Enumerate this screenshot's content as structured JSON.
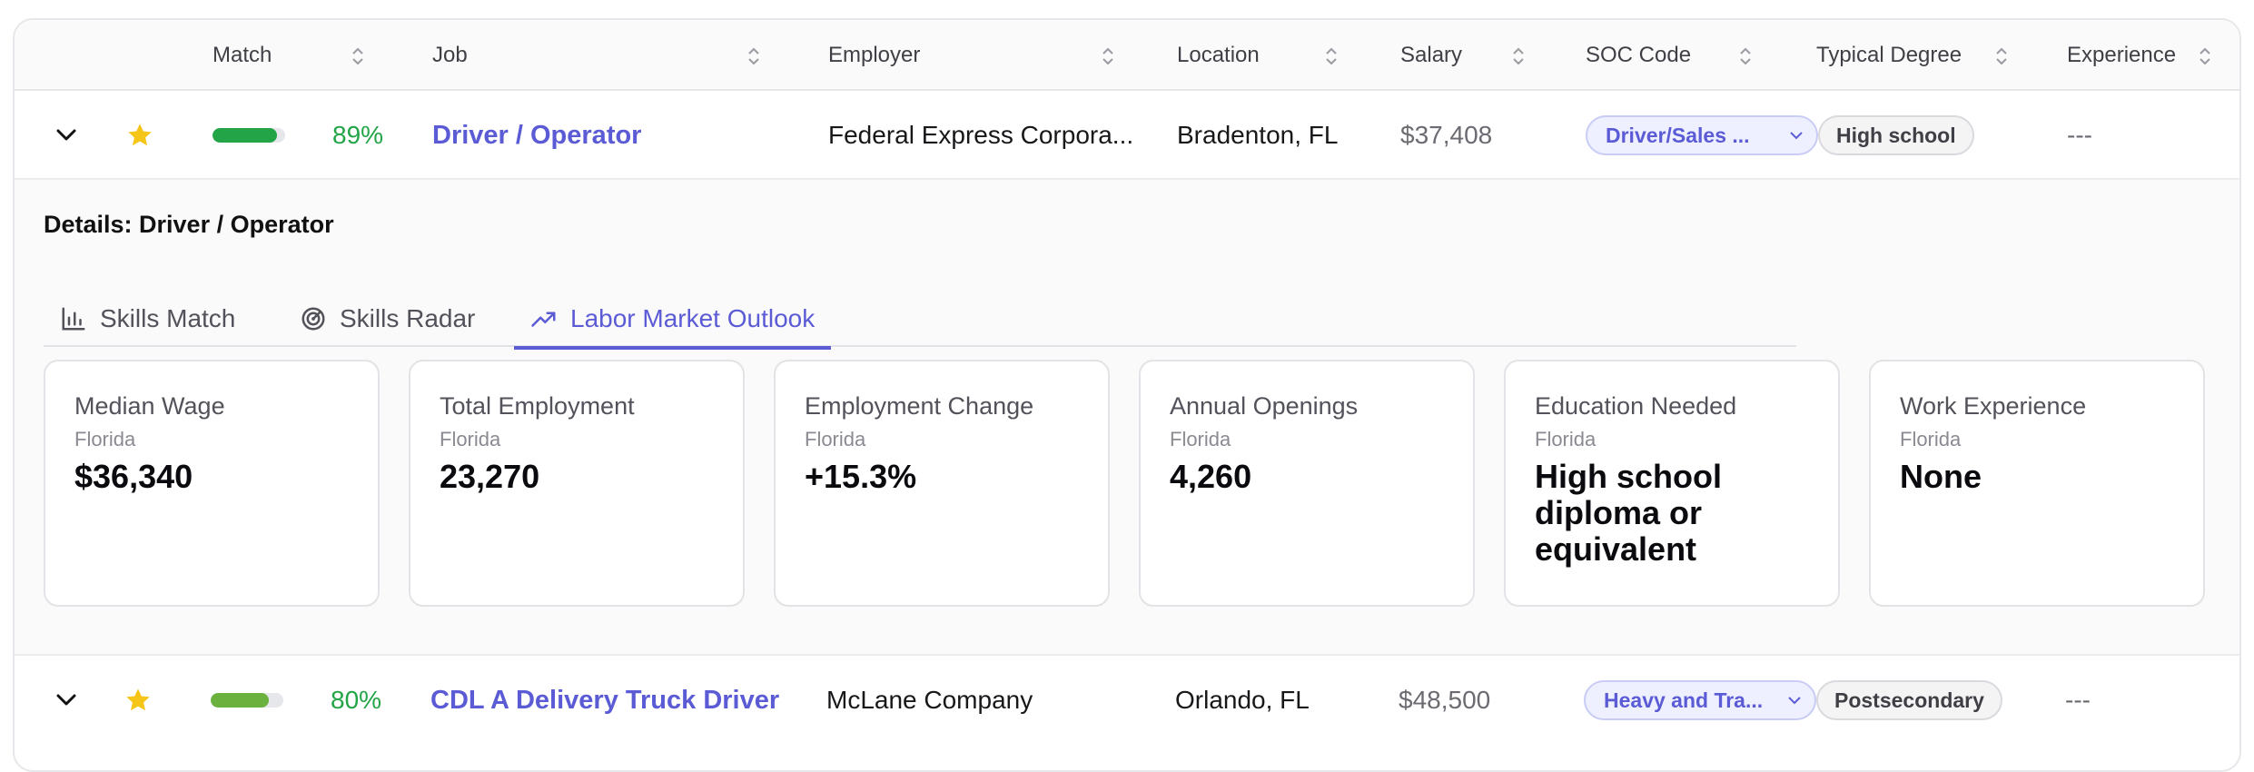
{
  "columns": {
    "match": "Match",
    "job": "Job",
    "employer": "Employer",
    "location": "Location",
    "salary": "Salary",
    "soc": "SOC Code",
    "degree": "Typical Degree",
    "experience": "Experience"
  },
  "rows": [
    {
      "starred": true,
      "match_pct": "89%",
      "match_fraction": 0.89,
      "match_color": "#22a447",
      "job": "Driver / Operator",
      "employer": "Federal Express Corpora...",
      "location": "Bradenton, FL",
      "salary": "$37,408",
      "soc": "Driver/Sales ...",
      "degree": "High school",
      "experience": "---"
    },
    {
      "starred": true,
      "match_pct": "80%",
      "match_fraction": 0.8,
      "match_color": "#6ab23d",
      "job": "CDL A Delivery Truck Driver",
      "employer": "McLane Company",
      "location": "Orlando, FL",
      "salary": "$48,500",
      "soc": "Heavy and Tra...",
      "degree": "Postsecondary",
      "experience": "---"
    }
  ],
  "details": {
    "title": "Details: Driver / Operator",
    "tabs": [
      {
        "label": "Skills Match",
        "icon": "bar-chart-icon"
      },
      {
        "label": "Skills Radar",
        "icon": "radar-icon"
      },
      {
        "label": "Labor Market Outlook",
        "icon": "trending-up-icon",
        "active": true
      }
    ],
    "cards": [
      {
        "label": "Median Wage",
        "sub": "Florida",
        "value": "$36,340"
      },
      {
        "label": "Total Employment",
        "sub": "Florida",
        "value": "23,270"
      },
      {
        "label": "Employment Change",
        "sub": "Florida",
        "value": "+15.3%"
      },
      {
        "label": "Annual Openings",
        "sub": "Florida",
        "value": "4,260"
      },
      {
        "label": "Education Needed",
        "sub": "Florida",
        "value": "High school diploma or equivalent"
      },
      {
        "label": "Work Experience",
        "sub": "Florida",
        "value": "None"
      }
    ]
  },
  "colors": {
    "accent": "#5b5bd6",
    "star": "#f5c518",
    "match_green": "#22a447"
  }
}
